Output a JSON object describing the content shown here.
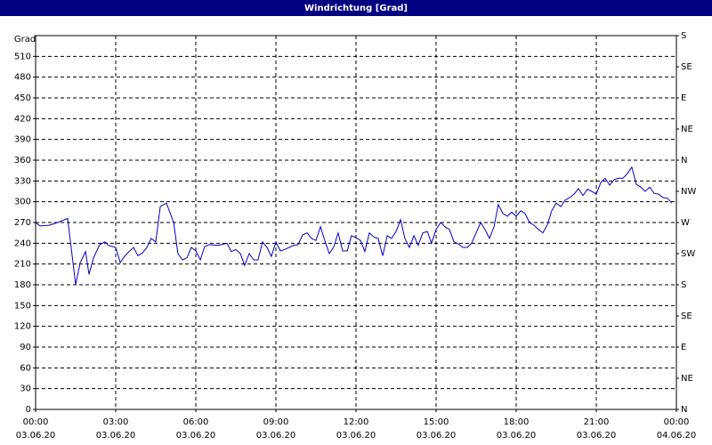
{
  "chart_data": {
    "type": "line",
    "title": "Windrichtung [Grad]",
    "y_label": "Grad",
    "xlim": [
      0,
      24
    ],
    "xticks": [
      {
        "value": 0,
        "label": "00:00"
      },
      {
        "value": 3,
        "label": "03:00"
      },
      {
        "value": 6,
        "label": "06:00"
      },
      {
        "value": 9,
        "label": "09:00"
      },
      {
        "value": 12,
        "label": "12:00"
      },
      {
        "value": 15,
        "label": "15:00"
      },
      {
        "value": 18,
        "label": "18:00"
      },
      {
        "value": 21,
        "label": "21:00"
      },
      {
        "value": 24,
        "label": "00:00"
      }
    ],
    "xtick_dates": [
      "03.06.20",
      "03.06.20",
      "03.06.20",
      "03.06.20",
      "03.06.20",
      "03.06.20",
      "03.06.20",
      "03.06.20",
      "04.06.20"
    ],
    "ylim": [
      0,
      540
    ],
    "yticks": [
      0,
      30,
      60,
      90,
      120,
      150,
      180,
      210,
      240,
      270,
      300,
      330,
      360,
      390,
      420,
      450,
      480,
      510
    ],
    "y2lim": [
      0,
      540
    ],
    "y2ticks": [
      {
        "value": 0,
        "label": "N"
      },
      {
        "value": 45,
        "label": "NE"
      },
      {
        "value": 90,
        "label": "E"
      },
      {
        "value": 135,
        "label": "SE"
      },
      {
        "value": 180,
        "label": "S"
      },
      {
        "value": 225,
        "label": "SW"
      },
      {
        "value": 270,
        "label": "W"
      },
      {
        "value": 315,
        "label": "NW"
      },
      {
        "value": 360,
        "label": "N"
      },
      {
        "value": 405,
        "label": "NE"
      },
      {
        "value": 450,
        "label": "E"
      },
      {
        "value": 495,
        "label": "SE"
      },
      {
        "value": 540,
        "label": "S"
      }
    ],
    "grid": true,
    "series": [
      {
        "color": "#0000cc",
        "x": [
          0.0,
          0.17,
          0.5,
          0.83,
          1.2,
          1.5,
          1.67,
          1.87,
          2.0,
          2.17,
          2.4,
          2.6,
          2.73,
          3.0,
          3.17,
          3.33,
          3.5,
          3.67,
          3.83,
          4.0,
          4.17,
          4.33,
          4.5,
          4.67,
          4.9,
          5.17,
          5.33,
          5.5,
          5.67,
          5.83,
          6.0,
          6.17,
          6.33,
          6.5,
          6.83,
          7.17,
          7.33,
          7.5,
          7.67,
          7.83,
          8.0,
          8.17,
          8.33,
          8.5,
          8.67,
          8.83,
          9.0,
          9.17,
          9.33,
          9.67,
          9.83,
          10.0,
          10.17,
          10.33,
          10.5,
          10.67,
          10.83,
          11.0,
          11.17,
          11.33,
          11.5,
          11.67,
          11.83,
          12.0,
          12.17,
          12.33,
          12.5,
          12.67,
          12.83,
          13.0,
          13.17,
          13.33,
          13.5,
          13.67,
          13.83,
          14.0,
          14.17,
          14.33,
          14.5,
          14.67,
          14.83,
          15.0,
          15.17,
          15.33,
          15.5,
          15.67,
          15.83,
          16.0,
          16.17,
          16.33,
          16.5,
          16.67,
          16.83,
          17.0,
          17.17,
          17.33,
          17.5,
          17.67,
          17.83,
          18.0,
          18.17,
          18.33,
          18.5,
          18.67,
          18.83,
          19.0,
          19.17,
          19.33,
          19.5,
          19.67,
          19.83,
          20.0,
          20.17,
          20.33,
          20.5,
          20.67,
          20.83,
          21.0,
          21.17,
          21.33,
          21.5,
          21.67,
          21.83,
          22.0,
          22.17,
          22.33,
          22.5,
          22.67,
          22.83,
          23.0,
          23.17,
          23.33,
          23.5,
          23.67,
          23.83
        ],
        "values": [
          270,
          265,
          266,
          270,
          276,
          180,
          212,
          228,
          195,
          219,
          238,
          242,
          237,
          234,
          212,
          221,
          228,
          234,
          222,
          226,
          234,
          247,
          242,
          293,
          298,
          270,
          225,
          216,
          219,
          234,
          229,
          216,
          235,
          238,
          237,
          240,
          228,
          231,
          225,
          208,
          225,
          216,
          216,
          242,
          234,
          221,
          242,
          229,
          231,
          237,
          238,
          252,
          255,
          247,
          244,
          264,
          244,
          225,
          235,
          255,
          229,
          229,
          251,
          248,
          244,
          228,
          255,
          249,
          247,
          222,
          251,
          247,
          257,
          274,
          247,
          234,
          251,
          237,
          255,
          257,
          240,
          260,
          270,
          264,
          260,
          242,
          239,
          234,
          234,
          240,
          255,
          270,
          260,
          247,
          264,
          296,
          283,
          279,
          285,
          279,
          287,
          283,
          270,
          266,
          260,
          255,
          267,
          287,
          298,
          293,
          302,
          306,
          311,
          319,
          309,
          318,
          315,
          311,
          328,
          334,
          324,
          332,
          334,
          334,
          341,
          350,
          325,
          321,
          315,
          321,
          312,
          311,
          306,
          305,
          298
        ]
      }
    ]
  }
}
